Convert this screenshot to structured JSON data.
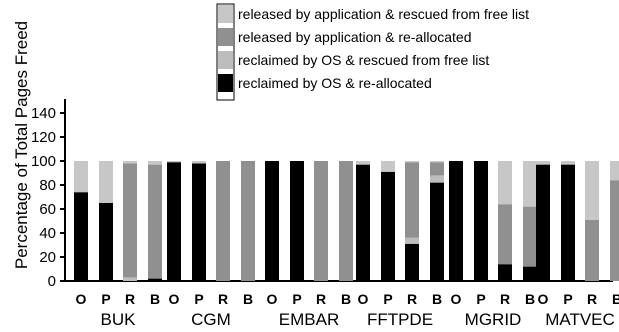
{
  "chart_data": {
    "type": "bar",
    "stacked": true,
    "ylabel": "Percentage of Total Pages Freed",
    "xlabel": "",
    "ylim": [
      0,
      150
    ],
    "yticks": [
      0,
      20,
      40,
      60,
      80,
      100,
      120,
      140
    ],
    "grid": false,
    "legend_position": "top-right",
    "groups": [
      {
        "name": "BUK",
        "bars": [
          {
            "label": "O",
            "values": [
              74,
              0,
              0,
              26
            ]
          },
          {
            "label": "P",
            "values": [
              65,
              0,
              0,
              35
            ]
          },
          {
            "label": "R",
            "values": [
              0,
              3,
              95,
              2
            ]
          },
          {
            "label": "B",
            "values": [
              2,
              0,
              95,
              3
            ]
          }
        ]
      },
      {
        "name": "CGM",
        "bars": [
          {
            "label": "O",
            "values": [
              99,
              0,
              0,
              1
            ]
          },
          {
            "label": "P",
            "values": [
              98,
              0,
              0,
              2
            ]
          },
          {
            "label": "R",
            "values": [
              0,
              0,
              100,
              0
            ]
          },
          {
            "label": "B",
            "values": [
              0,
              0,
              100,
              0
            ]
          }
        ]
      },
      {
        "name": "EMBAR",
        "bars": [
          {
            "label": "O",
            "values": [
              100,
              0,
              0,
              0
            ]
          },
          {
            "label": "P",
            "values": [
              100,
              0,
              0,
              0
            ]
          },
          {
            "label": "R",
            "values": [
              0,
              0,
              100,
              0
            ]
          },
          {
            "label": "B",
            "values": [
              0,
              0,
              100,
              0
            ]
          }
        ]
      },
      {
        "name": "FFTPDE",
        "bars": [
          {
            "label": "O",
            "values": [
              97,
              0,
              0,
              3
            ]
          },
          {
            "label": "P",
            "values": [
              91,
              0,
              0,
              9
            ]
          },
          {
            "label": "R",
            "values": [
              31,
              5,
              63,
              1
            ]
          },
          {
            "label": "B",
            "values": [
              82,
              6,
              11,
              1
            ]
          }
        ]
      },
      {
        "name": "MGRID",
        "bars": [
          {
            "label": "O",
            "values": [
              100,
              0,
              0,
              0
            ]
          },
          {
            "label": "P",
            "values": [
              100,
              0,
              0,
              0
            ]
          },
          {
            "label": "R",
            "values": [
              14,
              0,
              50,
              36
            ]
          },
          {
            "label": "B",
            "values": [
              12,
              0,
              50,
              38
            ]
          }
        ]
      },
      {
        "name": "MATVEC",
        "bars": [
          {
            "label": "O",
            "values": [
              97,
              0,
              0,
              3
            ]
          },
          {
            "label": "P",
            "values": [
              97,
              0,
              0,
              3
            ]
          },
          {
            "label": "R",
            "values": [
              0,
              0,
              51,
              49
            ]
          },
          {
            "label": "B",
            "values": [
              0,
              0,
              84,
              16
            ]
          }
        ]
      }
    ],
    "series": [
      {
        "name": "reclaimed by OS & re-allocated",
        "color": "#000000"
      },
      {
        "name": "reclaimed by OS & rescued from free list",
        "color": "#bdbdbd"
      },
      {
        "name": "released by application & re-allocated",
        "color": "#909090"
      },
      {
        "name": "released by application & rescued from free list",
        "color": "#c7c7c7"
      }
    ]
  }
}
